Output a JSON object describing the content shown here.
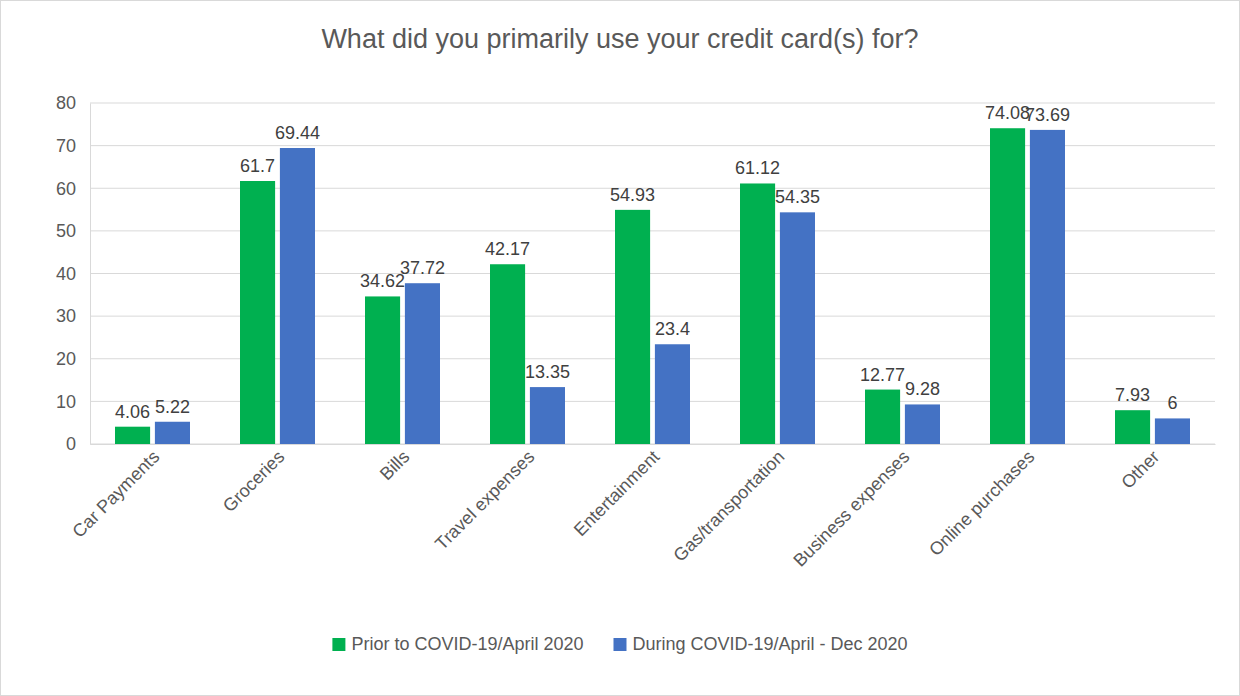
{
  "chart_data": {
    "type": "bar",
    "title": "What did you primarily use your credit card(s) for?",
    "categories": [
      "Car Payments",
      "Groceries",
      "Bills",
      "Travel expenses",
      "Entertainment",
      "Gas/transportation",
      "Business expenses",
      "Online purchases",
      "Other"
    ],
    "series": [
      {
        "name": "Prior to COVID-19/April 2020",
        "color": "#00b050",
        "values": [
          4.06,
          61.7,
          34.62,
          42.17,
          54.93,
          61.12,
          12.77,
          74.08,
          7.93
        ]
      },
      {
        "name": "During COVID-19/April - Dec 2020",
        "color": "#4472c4",
        "values": [
          5.22,
          69.44,
          37.72,
          13.35,
          23.4,
          54.35,
          9.28,
          73.69,
          6
        ]
      }
    ],
    "ylim": [
      0,
      80
    ],
    "yticks": [
      0,
      10,
      20,
      30,
      40,
      50,
      60,
      70,
      80
    ],
    "grid": true,
    "data_labels": true,
    "legend": "bottom"
  }
}
